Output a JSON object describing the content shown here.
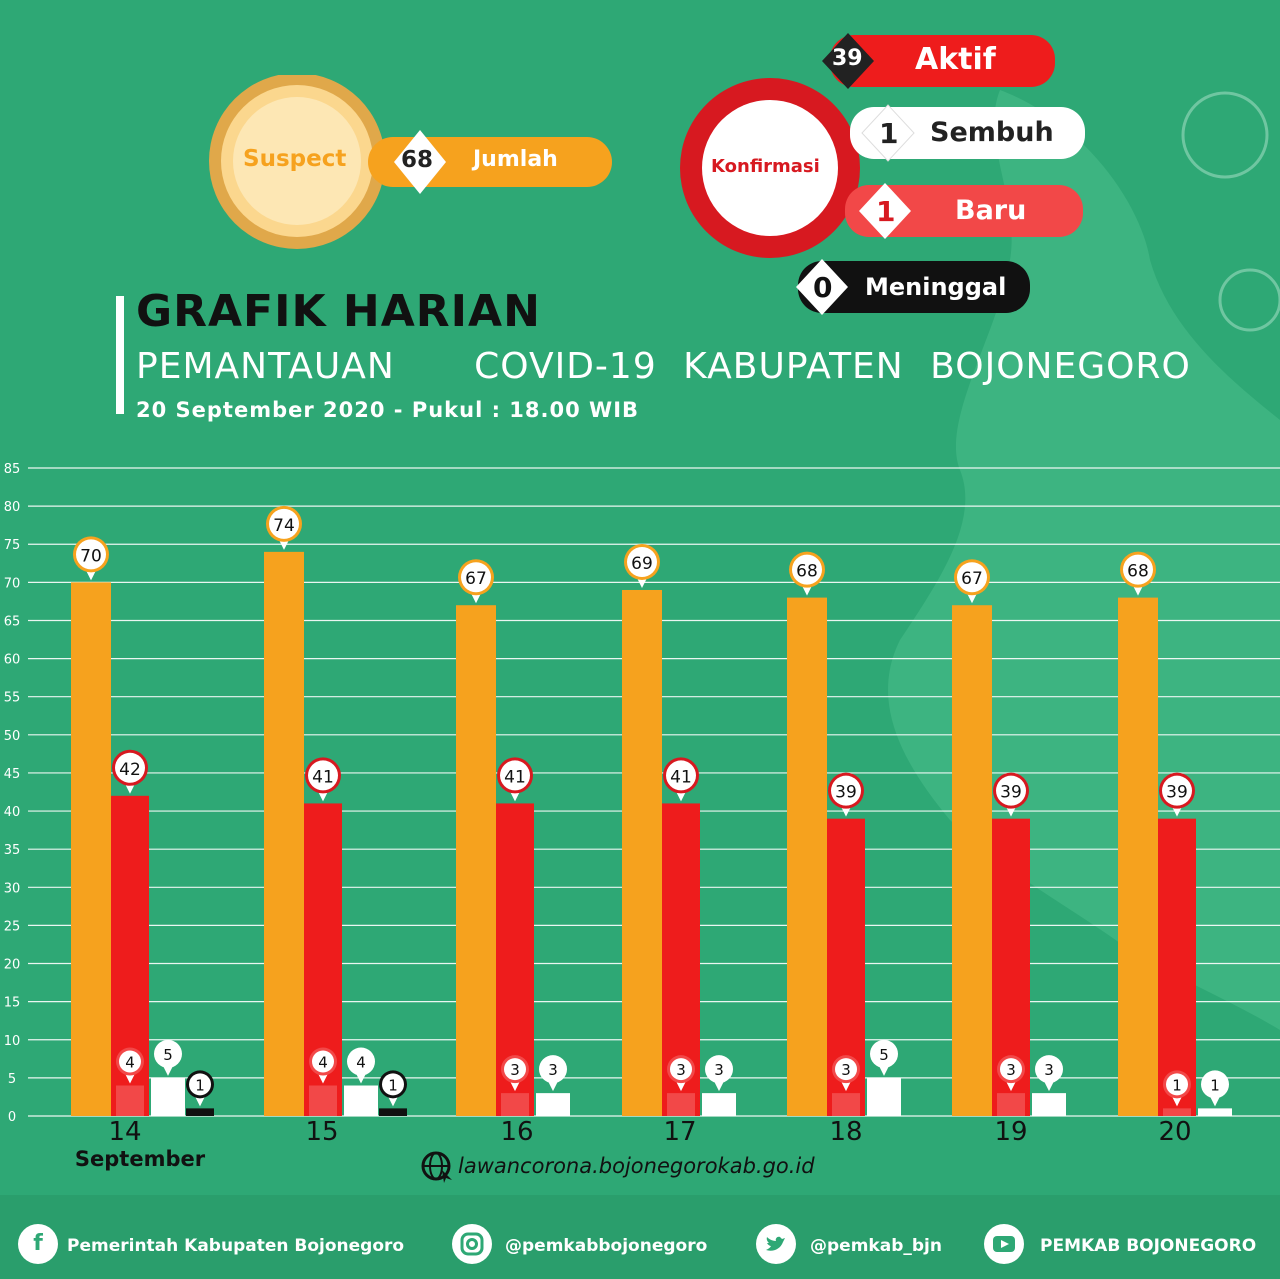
{
  "header": {
    "suspect": {
      "label": "Suspect",
      "value": "68",
      "value_label": "Jumlah"
    },
    "konfirmasi": {
      "label": "Konfirmasi",
      "items": [
        {
          "value": "39",
          "label": "Aktif"
        },
        {
          "value": "1",
          "label": "Sembuh"
        },
        {
          "value": "1",
          "label": "Baru"
        },
        {
          "value": "0",
          "label": "Meninggal"
        }
      ]
    }
  },
  "title": {
    "line1": "GRAFIK HARIAN",
    "line2": "PEMANTAUAN   COVID-19 KABUPATEN BOJONEGORO",
    "line3": "20 September 2020 - Pukul : 18.00 WIB"
  },
  "colors": {
    "suspect": "#f6a21e",
    "aktif": "#ee1c1c",
    "baru": "#f24848",
    "sembuh": "#ffffff",
    "meninggal": "#111111",
    "background": "#2ea875"
  },
  "chart_data": {
    "type": "bar",
    "categories": [
      "14",
      "15",
      "16",
      "17",
      "18",
      "19",
      "20"
    ],
    "category_sublabel": "September",
    "ylim": [
      0,
      85
    ],
    "yticks": [
      0,
      5,
      10,
      15,
      20,
      25,
      30,
      35,
      40,
      45,
      50,
      55,
      60,
      65,
      70,
      75,
      80,
      85
    ],
    "series": [
      {
        "key": "suspect",
        "values": [
          70,
          74,
          67,
          69,
          68,
          67,
          68
        ]
      },
      {
        "key": "aktif",
        "values": [
          42,
          41,
          41,
          41,
          39,
          39,
          39
        ]
      },
      {
        "key": "baru",
        "values": [
          4,
          4,
          3,
          3,
          3,
          3,
          1
        ]
      },
      {
        "key": "sembuh",
        "values": [
          5,
          4,
          3,
          3,
          5,
          3,
          1
        ]
      },
      {
        "key": "meninggal",
        "values": [
          1,
          1,
          null,
          null,
          null,
          null,
          null
        ]
      }
    ]
  },
  "website": "lawancorona.bojonegorokab.go.id",
  "footer": [
    {
      "icon": "facebook-icon",
      "text": "Pemerintah Kabupaten Bojonegoro"
    },
    {
      "icon": "instagram-icon",
      "text": "@pemkabbojonegoro"
    },
    {
      "icon": "twitter-icon",
      "text": "@pemkab_bjn"
    },
    {
      "icon": "youtube-icon",
      "text": "PEMKAB BOJONEGORO"
    }
  ]
}
